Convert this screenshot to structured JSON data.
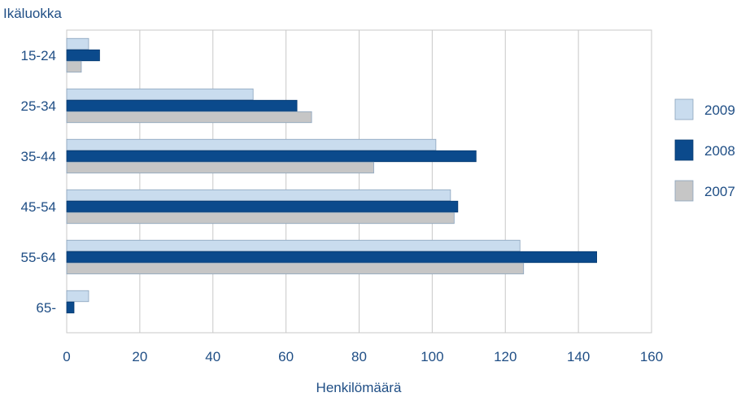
{
  "chart_data": {
    "type": "bar",
    "orientation": "horizontal",
    "title": "",
    "ylabel": "Ikäluokka",
    "xlabel": "Henkilömäärä",
    "categories": [
      "15-24",
      "25-34",
      "35-44",
      "45-54",
      "55-64",
      "65-"
    ],
    "xlim": [
      0,
      160
    ],
    "xticks": [
      "0",
      "20",
      "40",
      "60",
      "80",
      "100",
      "120",
      "140",
      "160"
    ],
    "grid": "vertical",
    "legend_position": "right",
    "series": [
      {
        "name": "2009",
        "color": "#c9dcee",
        "values": [
          6,
          51,
          101,
          105,
          124,
          6
        ]
      },
      {
        "name": "2008",
        "color": "#0b4a8c",
        "values": [
          9,
          63,
          112,
          107,
          145,
          2
        ]
      },
      {
        "name": "2007",
        "color": "#c6c6c6",
        "values": [
          4,
          67,
          84,
          106,
          125,
          0
        ]
      }
    ]
  }
}
